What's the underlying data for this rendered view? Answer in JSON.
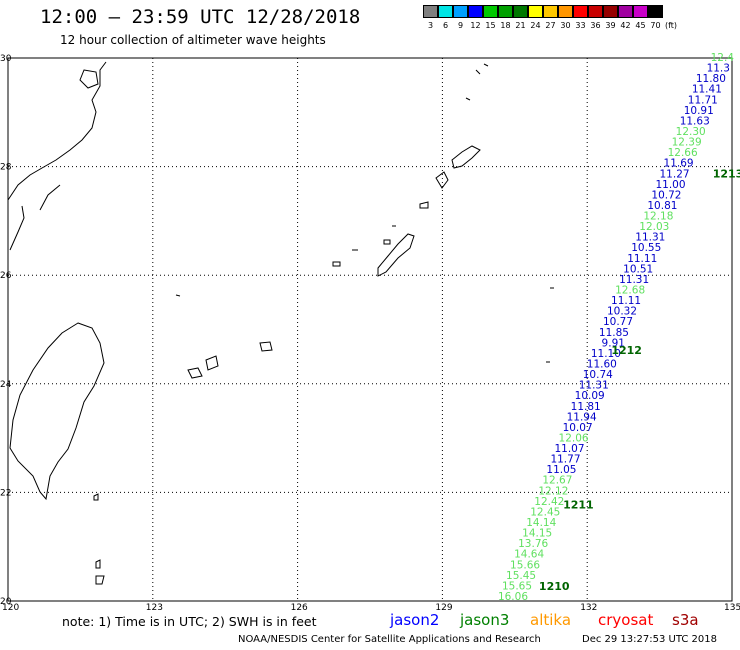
{
  "header": {
    "title": "12:00 – 23:59 UTC 12/28/2018",
    "subtitle": "12 hour collection of altimeter wave heights"
  },
  "colorbar": {
    "colors": [
      "#7f7f7f",
      "#00e5e5",
      "#00a0ff",
      "#0000ff",
      "#00c800",
      "#00a000",
      "#007800",
      "#ffff00",
      "#ffc800",
      "#ff9600",
      "#ff0000",
      "#c80000",
      "#960000",
      "#a000a0",
      "#c800c8",
      "#000000"
    ],
    "labels": [
      "3",
      "6",
      "9",
      "12",
      "15",
      "18",
      "21",
      "24",
      "27",
      "30",
      "33",
      "36",
      "39",
      "42",
      "45",
      "70"
    ],
    "unit": "(ft)"
  },
  "map": {
    "lon_labels": [
      "120",
      "123",
      "126",
      "129",
      "132",
      "135"
    ],
    "lat_labels": [
      "30",
      "28",
      "26",
      "24",
      "22",
      "20"
    ],
    "pass_labels": [
      {
        "text": "1213",
        "lon": 134.6,
        "lat": 27.8
      },
      {
        "text": "1212",
        "lon": 132.5,
        "lat": 24.55
      },
      {
        "text": "1211",
        "lon": 131.5,
        "lat": 21.7
      },
      {
        "text": "1210",
        "lon": 131.0,
        "lat": 20.2
      }
    ],
    "track_colors": {
      "jason2": "#0000c8",
      "jason3": "#60e060"
    },
    "observations": [
      {
        "v": "12.4",
        "c": "jason3"
      },
      {
        "v": "11.3",
        "c": "jason2"
      },
      {
        "v": "11.80",
        "c": "jason2"
      },
      {
        "v": "11.41",
        "c": "jason2"
      },
      {
        "v": "11.71",
        "c": "jason2"
      },
      {
        "v": "10.91",
        "c": "jason2"
      },
      {
        "v": "11.63",
        "c": "jason2"
      },
      {
        "v": "12.30",
        "c": "jason3"
      },
      {
        "v": "12.39",
        "c": "jason3"
      },
      {
        "v": "12.66",
        "c": "jason3"
      },
      {
        "v": "11.69",
        "c": "jason2"
      },
      {
        "v": "11.27",
        "c": "jason2"
      },
      {
        "v": "11.00",
        "c": "jason2"
      },
      {
        "v": "10.72",
        "c": "jason2"
      },
      {
        "v": "10.81",
        "c": "jason2"
      },
      {
        "v": "12.18",
        "c": "jason3"
      },
      {
        "v": "12.03",
        "c": "jason3"
      },
      {
        "v": "11.31",
        "c": "jason2"
      },
      {
        "v": "10.55",
        "c": "jason2"
      },
      {
        "v": "11.11",
        "c": "jason2"
      },
      {
        "v": "10.51",
        "c": "jason2"
      },
      {
        "v": "11.31",
        "c": "jason2"
      },
      {
        "v": "12.68",
        "c": "jason3"
      },
      {
        "v": "11.11",
        "c": "jason2"
      },
      {
        "v": "10.32",
        "c": "jason2"
      },
      {
        "v": "10.77",
        "c": "jason2"
      },
      {
        "v": "11.85",
        "c": "jason2"
      },
      {
        "v": "9.91",
        "c": "jason2"
      },
      {
        "v": "11.10",
        "c": "jason2"
      },
      {
        "v": "11.60",
        "c": "jason2"
      },
      {
        "v": "10.74",
        "c": "jason2"
      },
      {
        "v": "11.31",
        "c": "jason2"
      },
      {
        "v": "10.09",
        "c": "jason2"
      },
      {
        "v": "11.81",
        "c": "jason2"
      },
      {
        "v": "11.94",
        "c": "jason2"
      },
      {
        "v": "10.07",
        "c": "jason2"
      },
      {
        "v": "12.06",
        "c": "jason3"
      },
      {
        "v": "11.07",
        "c": "jason2"
      },
      {
        "v": "11.77",
        "c": "jason2"
      },
      {
        "v": "11.05",
        "c": "jason2"
      },
      {
        "v": "12.67",
        "c": "jason3"
      },
      {
        "v": "12.12",
        "c": "jason3"
      },
      {
        "v": "12.42",
        "c": "jason3"
      },
      {
        "v": "12.45",
        "c": "jason3"
      },
      {
        "v": "14.14",
        "c": "jason3"
      },
      {
        "v": "14.15",
        "c": "jason3"
      },
      {
        "v": "13.76",
        "c": "jason3"
      },
      {
        "v": "14.64",
        "c": "jason3"
      },
      {
        "v": "15.66",
        "c": "jason3"
      },
      {
        "v": "15.45",
        "c": "jason3"
      },
      {
        "v": "15.65",
        "c": "jason3"
      },
      {
        "v": "16.06",
        "c": "jason3"
      }
    ]
  },
  "footer": {
    "note": "note: 1) Time is in UTC; 2) SWH is in feet",
    "legend": [
      {
        "label": "jason2",
        "color": "#0000ff"
      },
      {
        "label": "jason3",
        "color": "#008000"
      },
      {
        "label": "altika",
        "color": "#ff9900"
      },
      {
        "label": "cryosat",
        "color": "#ff0000"
      },
      {
        "label": "s3a",
        "color": "#a00000"
      }
    ],
    "credit": "NOAA/NESDIS Center for Satellite Applications and Research",
    "timestamp": "Dec 29 13:27:53 UTC 2018"
  }
}
